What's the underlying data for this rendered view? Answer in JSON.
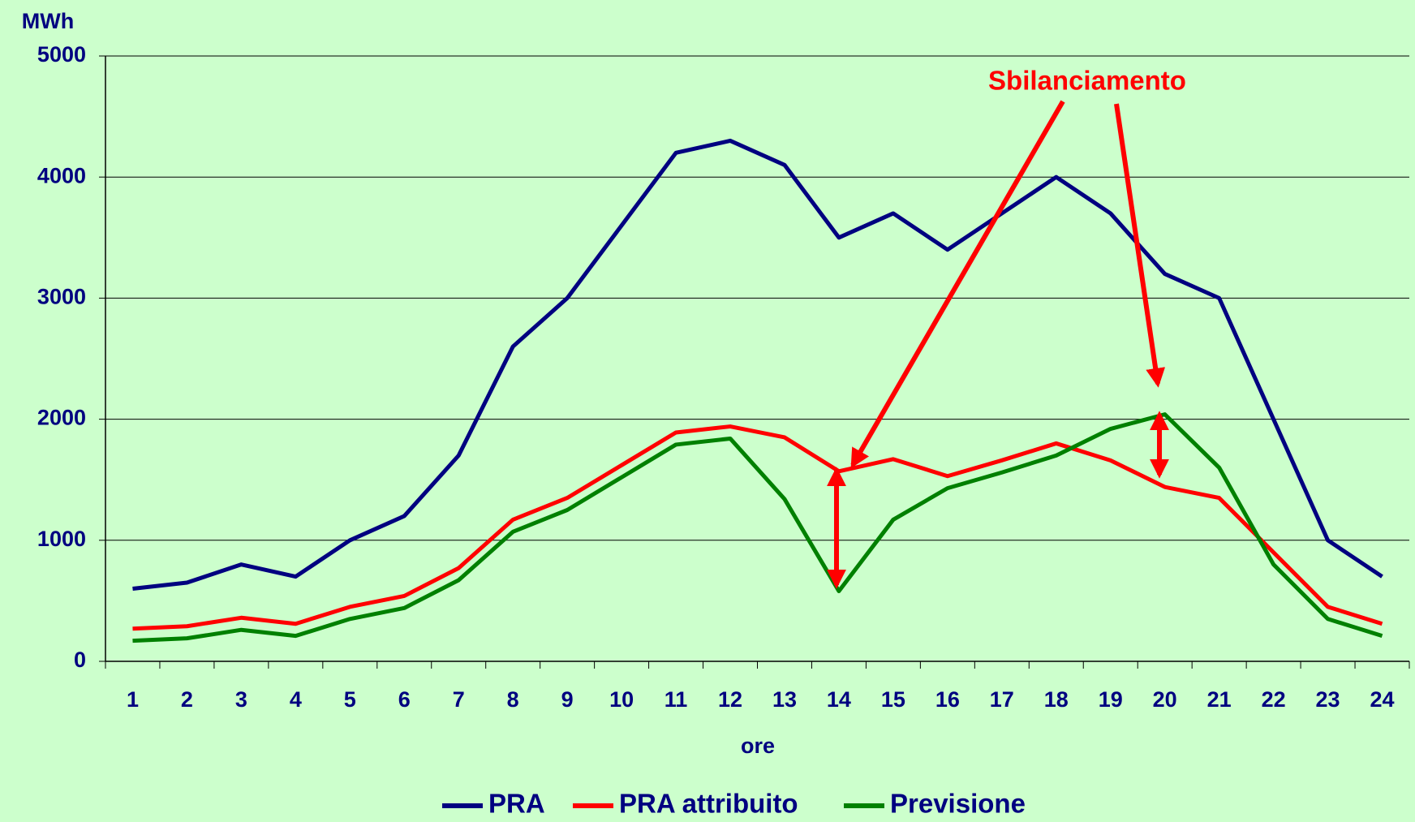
{
  "chart_data": {
    "type": "line",
    "y_label": "MWh",
    "x_label": "ore",
    "annotation": "Sbilanciamento",
    "categories": [
      "1",
      "2",
      "3",
      "4",
      "5",
      "6",
      "7",
      "8",
      "9",
      "10",
      "11",
      "12",
      "13",
      "14",
      "15",
      "16",
      "17",
      "18",
      "19",
      "20",
      "21",
      "22",
      "23",
      "24"
    ],
    "series": [
      {
        "name": "PRA",
        "color": "#000080",
        "values": [
          600,
          650,
          800,
          700,
          1000,
          1200,
          1700,
          2600,
          3000,
          3600,
          4200,
          4300,
          4100,
          3500,
          3700,
          3400,
          3700,
          4000,
          3700,
          3200,
          3000,
          2000,
          1000,
          700
        ]
      },
      {
        "name": "PRA attribuito",
        "color": "#ff0000",
        "values": [
          270,
          290,
          360,
          310,
          450,
          540,
          770,
          1170,
          1350,
          1620,
          1890,
          1940,
          1850,
          1570,
          1670,
          1530,
          1660,
          1800,
          1660,
          1440,
          1350,
          900,
          450,
          310
        ]
      },
      {
        "name": "Previsione",
        "color": "#008000",
        "values": [
          170,
          190,
          260,
          210,
          350,
          440,
          670,
          1070,
          1250,
          1520,
          1790,
          1840,
          1340,
          580,
          1170,
          1430,
          1560,
          1700,
          1920,
          2040,
          1600,
          800,
          350,
          210
        ]
      }
    ],
    "ylim": [
      0,
      5000
    ],
    "yticks": [
      0,
      1000,
      2000,
      3000,
      4000,
      5000
    ],
    "grid": true,
    "legend": "bottom"
  }
}
